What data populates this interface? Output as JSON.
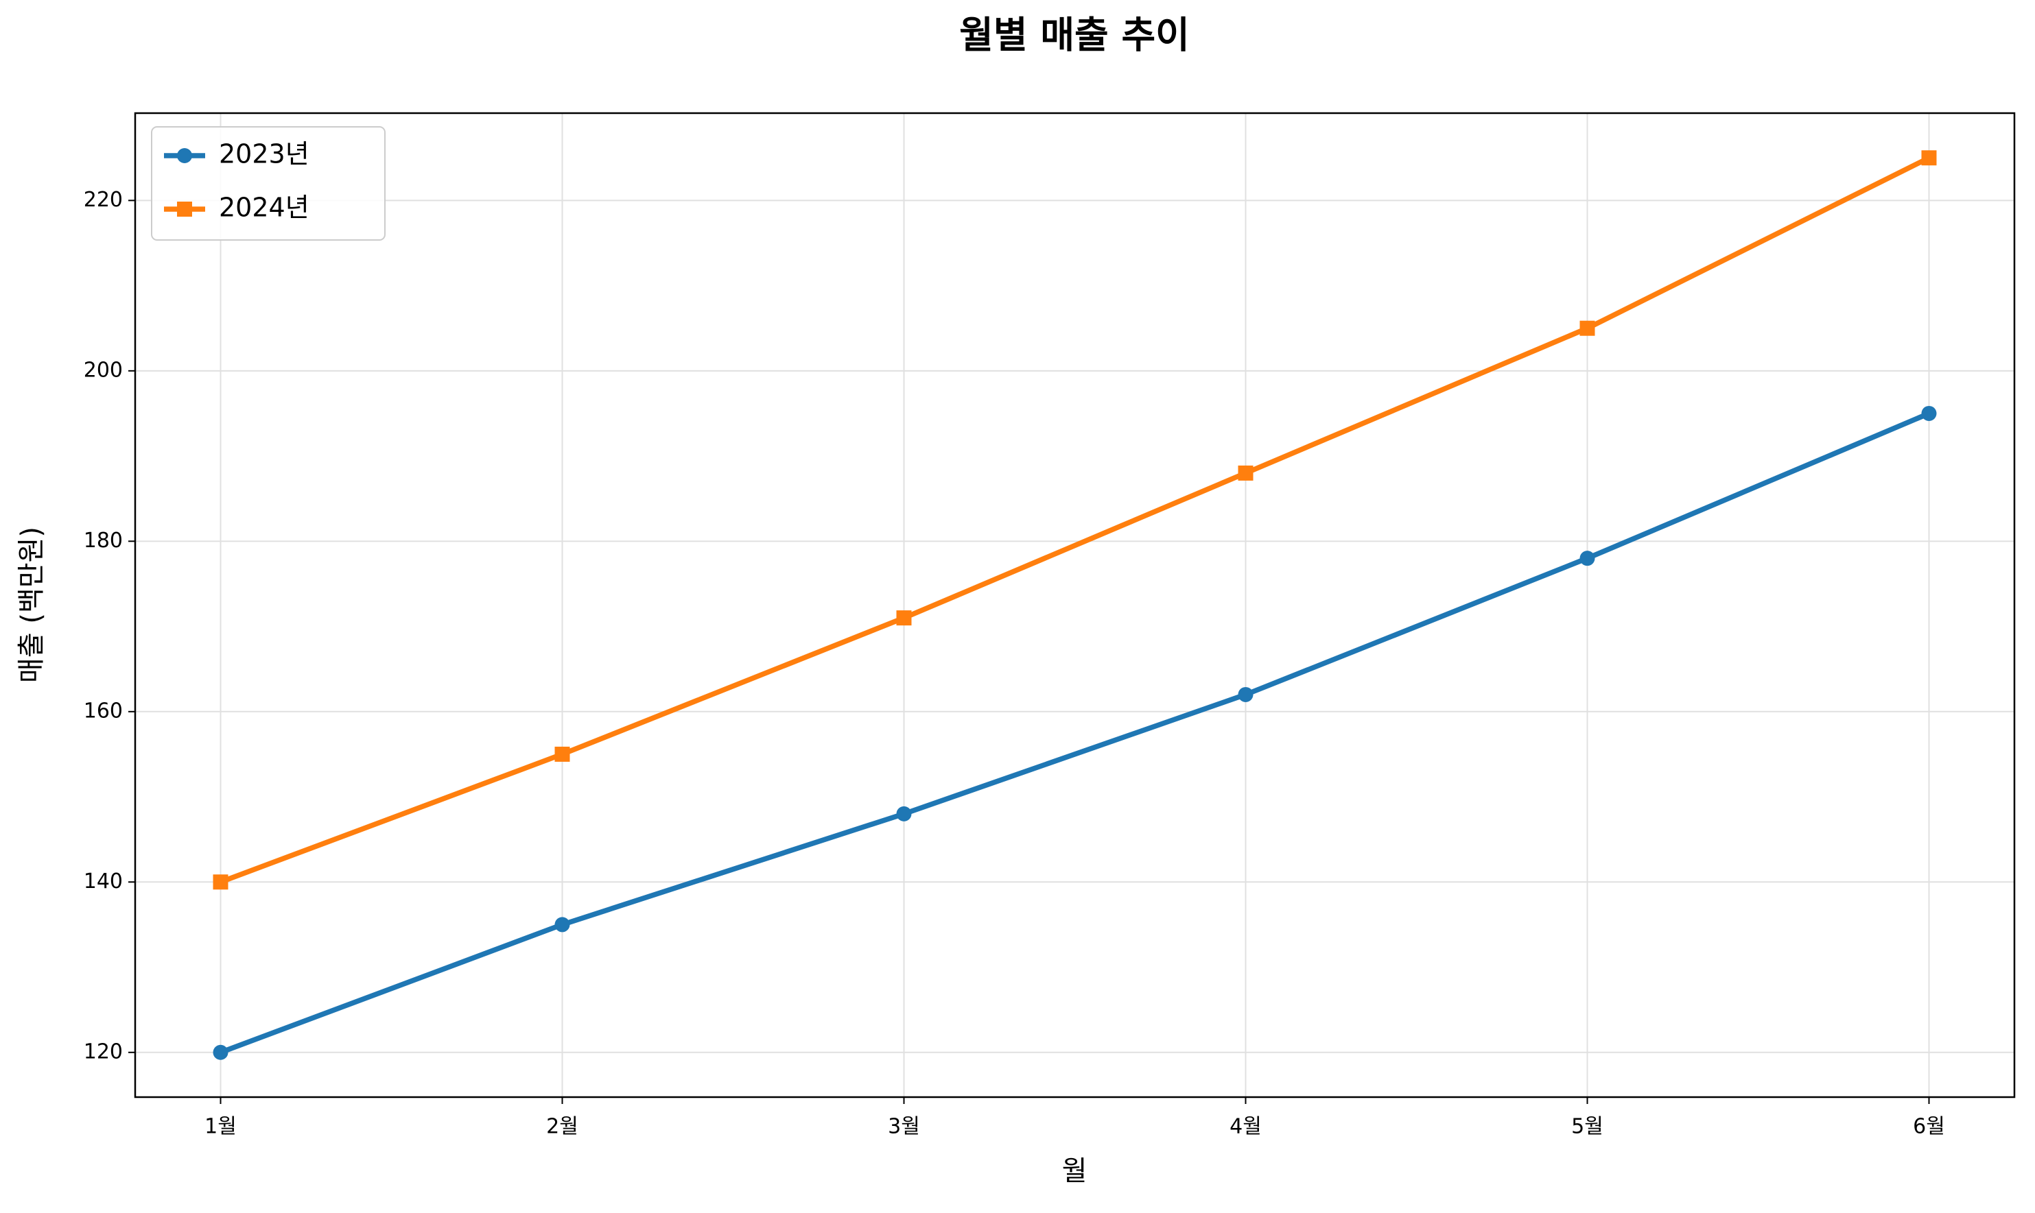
{
  "chart_data": {
    "type": "line",
    "title": "월별 매출 추이",
    "x_label": "월",
    "y_label": "매출 (백만원)",
    "categories": [
      "1월",
      "2월",
      "3월",
      "4월",
      "5월",
      "6월"
    ],
    "series": [
      {
        "name": "2023년",
        "color": "#1f77b4",
        "marker": "circle",
        "values": [
          120,
          135,
          148,
          162,
          178,
          195
        ]
      },
      {
        "name": "2024년",
        "color": "#ff7f0e",
        "marker": "square",
        "values": [
          140,
          155,
          171,
          188,
          205,
          225
        ]
      }
    ],
    "ylim": [
      114.75,
      230.25
    ],
    "yticks": [
      120,
      140,
      160,
      180,
      200,
      220
    ],
    "grid": true,
    "legend": "upper left"
  }
}
